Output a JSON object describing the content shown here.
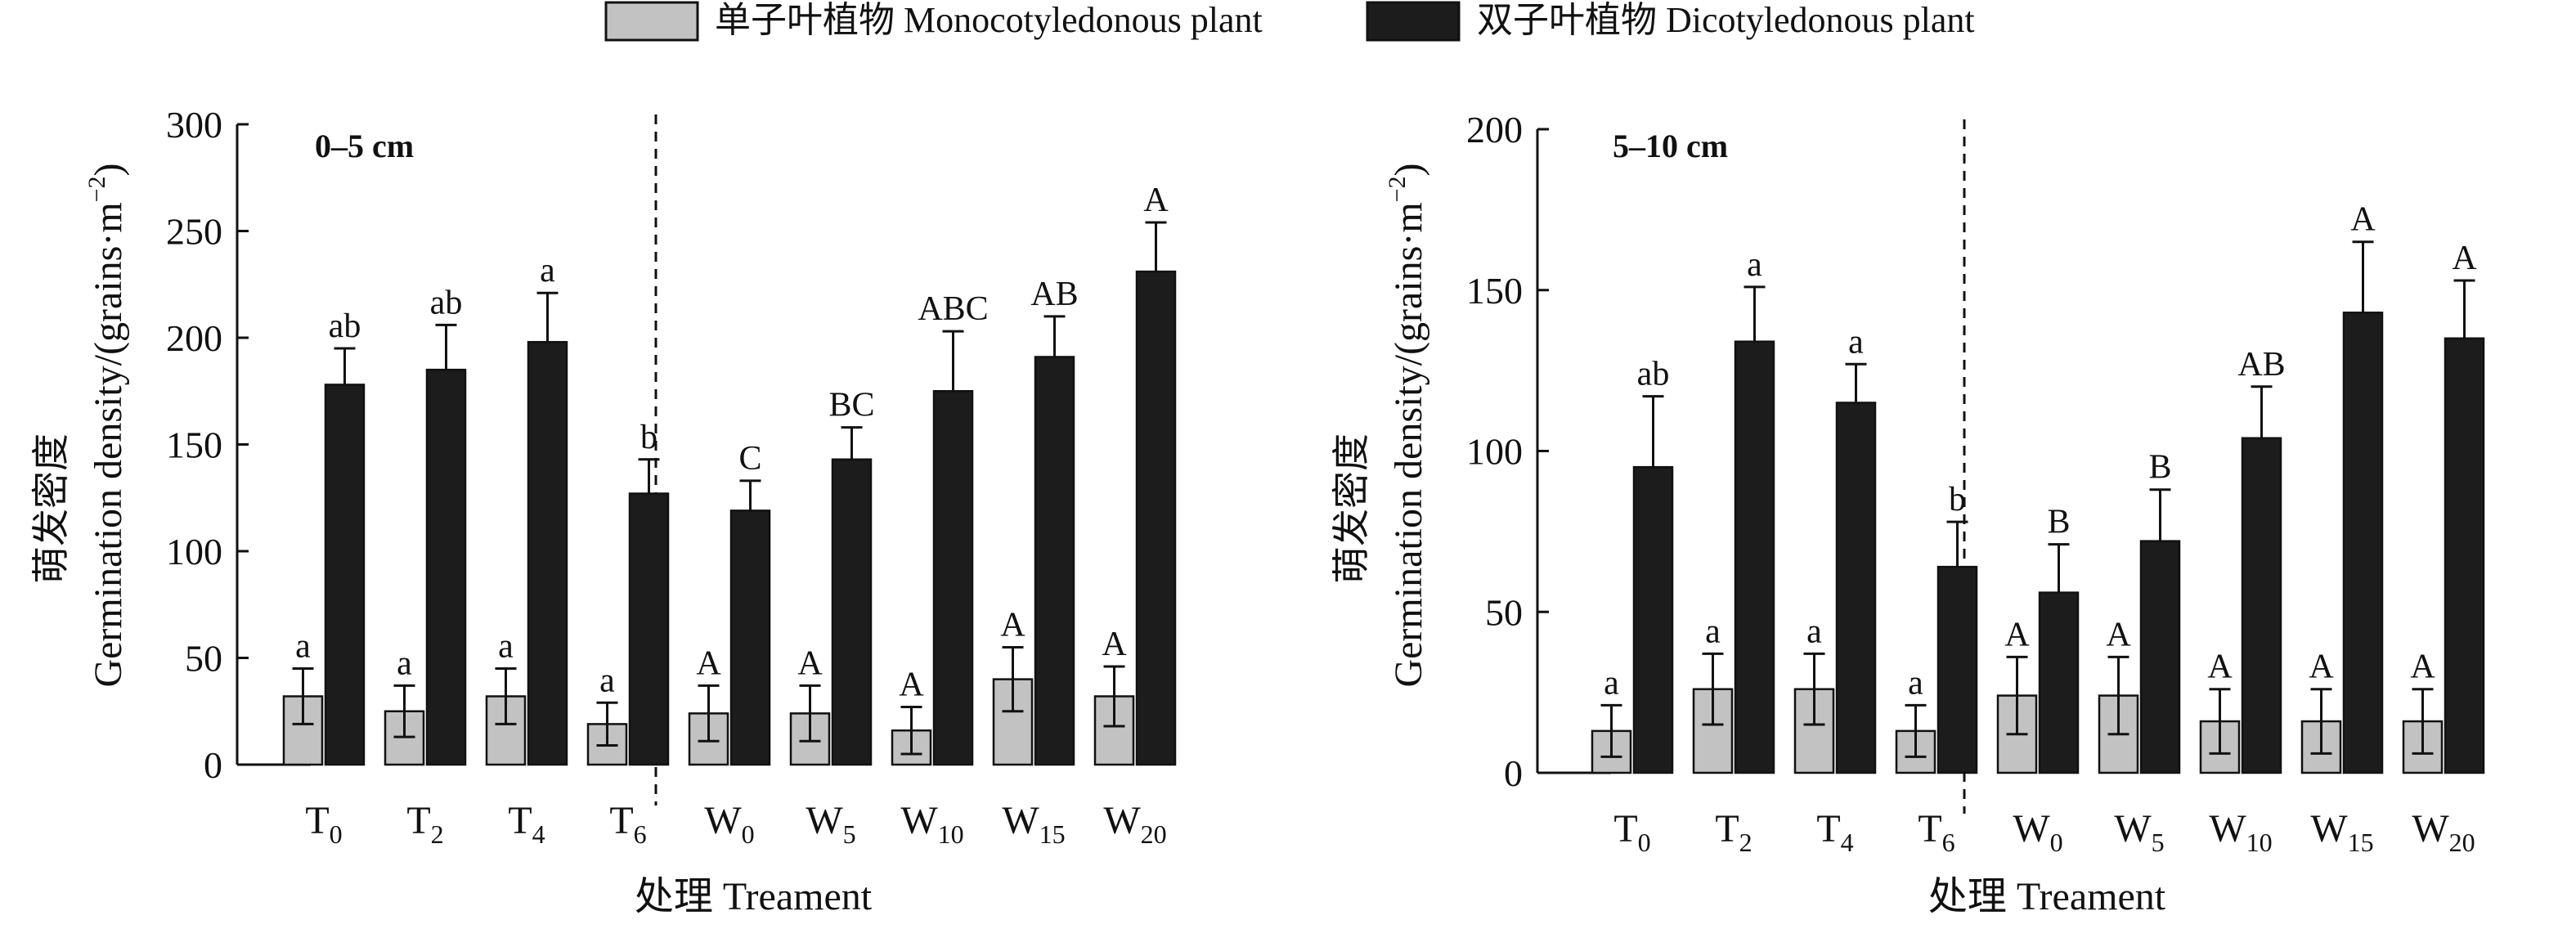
{
  "legend": {
    "items": [
      {
        "label": "单子叶植物 Monocotyledonous plant",
        "color": "#c2c2c2"
      },
      {
        "label": "双子叶植物 Dicotyledonous plant",
        "color": "#1c1c1c"
      }
    ]
  },
  "chart_data": [
    {
      "type": "bar",
      "panel_label": "0–5 cm",
      "ylabel_cn": "萌发密度",
      "ylabel_en": "Germination density/(grains·m",
      "ylabel_sup": "−2",
      "ylabel_close": ")",
      "xlabel": "处理 Treament",
      "ylim": [
        0,
        300
      ],
      "yticks": [
        0,
        50,
        100,
        150,
        200,
        250,
        300
      ],
      "categories": [
        {
          "base": "T",
          "sub": "0"
        },
        {
          "base": "T",
          "sub": "2"
        },
        {
          "base": "T",
          "sub": "4"
        },
        {
          "base": "T",
          "sub": "6"
        },
        {
          "base": "W",
          "sub": "0"
        },
        {
          "base": "W",
          "sub": "5"
        },
        {
          "base": "W",
          "sub": "10"
        },
        {
          "base": "W",
          "sub": "15"
        },
        {
          "base": "W",
          "sub": "20"
        }
      ],
      "divider_after_index": 3,
      "series": [
        {
          "name": "单子叶植物 Monocotyledonous plant",
          "color": "#c2c2c2",
          "values": [
            32,
            25,
            32,
            19,
            24,
            24,
            16,
            40,
            32
          ],
          "errors": [
            13,
            12,
            13,
            10,
            13,
            13,
            11,
            15,
            14
          ],
          "letters": [
            "a",
            "a",
            "a",
            "a",
            "A",
            "A",
            "A",
            "A",
            "A"
          ]
        },
        {
          "name": "双子叶植物 Dicotyledonous plant",
          "color": "#1c1c1c",
          "values": [
            178,
            185,
            198,
            127,
            119,
            143,
            175,
            191,
            231
          ],
          "errors": [
            17,
            21,
            23,
            16,
            14,
            15,
            28,
            19,
            23
          ],
          "letters": [
            "ab",
            "ab",
            "a",
            "b",
            "C",
            "BC",
            "ABC",
            "AB",
            "A"
          ]
        }
      ]
    },
    {
      "type": "bar",
      "panel_label": "5–10 cm",
      "ylabel_cn": "萌发密度",
      "ylabel_en": "Germination density/(grains·m",
      "ylabel_sup": "−2",
      "ylabel_close": ")",
      "xlabel": "处理 Treament",
      "ylim": [
        0,
        200
      ],
      "yticks": [
        0,
        50,
        100,
        150,
        200
      ],
      "categories": [
        {
          "base": "T",
          "sub": "0"
        },
        {
          "base": "T",
          "sub": "2"
        },
        {
          "base": "T",
          "sub": "4"
        },
        {
          "base": "T",
          "sub": "6"
        },
        {
          "base": "W",
          "sub": "0"
        },
        {
          "base": "W",
          "sub": "5"
        },
        {
          "base": "W",
          "sub": "10"
        },
        {
          "base": "W",
          "sub": "15"
        },
        {
          "base": "W",
          "sub": "20"
        }
      ],
      "divider_after_index": 3,
      "series": [
        {
          "name": "单子叶植物 Monocotyledonous plant",
          "color": "#c2c2c2",
          "values": [
            13,
            26,
            26,
            13,
            24,
            24,
            16,
            16,
            16
          ],
          "errors": [
            8,
            11,
            11,
            8,
            12,
            12,
            10,
            10,
            10
          ],
          "letters": [
            "a",
            "a",
            "a",
            "a",
            "A",
            "A",
            "A",
            "A",
            "A"
          ]
        },
        {
          "name": "双子叶植物 Dicotyledonous plant",
          "color": "#1c1c1c",
          "values": [
            95,
            134,
            115,
            64,
            56,
            72,
            104,
            143,
            135
          ],
          "errors": [
            22,
            17,
            12,
            14,
            15,
            16,
            16,
            22,
            18
          ],
          "letters": [
            "ab",
            "a",
            "a",
            "b",
            "B",
            "B",
            "AB",
            "A",
            "A"
          ]
        }
      ]
    }
  ]
}
